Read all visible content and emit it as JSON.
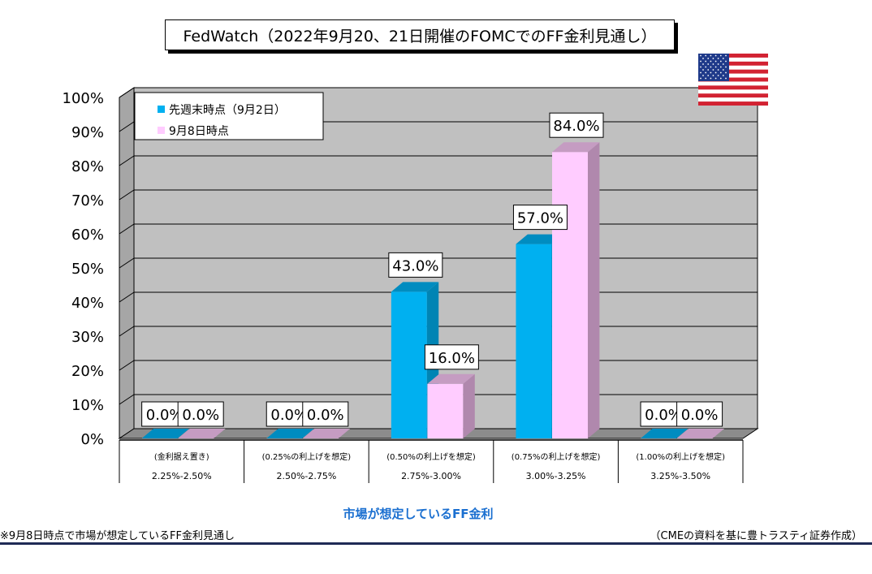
{
  "title": "FedWatch（2022年9月20、21日開催のFOMCでのFF金利見通し）",
  "note": "※9月8日時点で市場が想定しているFF金利見通し",
  "source": "（CMEの資料を基に豊トラスティ証券作成）",
  "flag_icon": "us-flag-icon",
  "chart_data": {
    "type": "bar",
    "title": "FedWatch（2022年9月20、21日開催のFOMCでのFF金利見通し）",
    "xlabel": "市場が想定しているFF金利",
    "ylabel": "",
    "ylim": [
      0,
      100
    ],
    "yticks": [
      "0%",
      "10%",
      "20%",
      "30%",
      "40%",
      "50%",
      "60%",
      "70%",
      "80%",
      "90%",
      "100%"
    ],
    "grid": true,
    "legend_position": "top-left",
    "categories": [
      {
        "line1": "(金利据え置き)",
        "line2": "2.25%-2.50%"
      },
      {
        "line1": "(0.25%の利上げを想定)",
        "line2": "2.50%-2.75%"
      },
      {
        "line1": "(0.50%の利上げを想定)",
        "line2": "2.75%-3.00%"
      },
      {
        "line1": "(0.75%の利上げを想定)",
        "line2": "3.00%-3.25%"
      },
      {
        "line1": "(1.00%の利上げを想定)",
        "line2": "3.25%-3.50%"
      }
    ],
    "series": [
      {
        "name": "先週末時点（9月2日）",
        "values": [
          0,
          0,
          43,
          57,
          0
        ],
        "labels": [
          "0.0%",
          "0.0%",
          "43.0%",
          "57.0%",
          "0.0%"
        ],
        "color": "#00b0f0",
        "side_color": "#0084b4",
        "top_color": "#008cc0"
      },
      {
        "name": "9月8日時点",
        "values": [
          0,
          0,
          16,
          84,
          0
        ],
        "labels": [
          "0.0%",
          "0.0%",
          "16.0%",
          "84.0%",
          "0.0%"
        ],
        "color": "#ffccff",
        "side_color": "#b088ad",
        "top_color": "#c59cc2"
      }
    ],
    "colors": {
      "plot_bg": "#c0c0c0",
      "wall_bg": "#a6a6a6",
      "floor": "#8c8c8c",
      "grid": "#000000",
      "xlabel": "#1a6fd0"
    }
  }
}
